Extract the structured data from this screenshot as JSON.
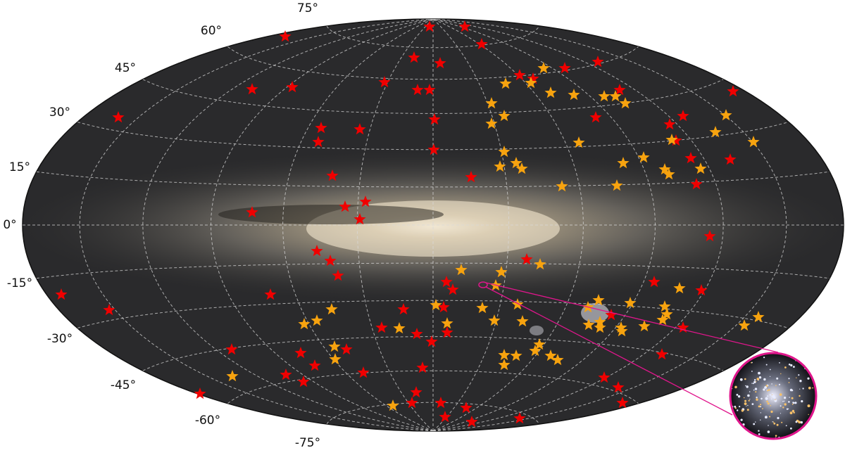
{
  "latitude_labels": [
    "75°",
    "60°",
    "45°",
    "30°",
    "15°",
    "0°",
    "-15°",
    "-30°",
    "-45°",
    "-60°",
    "-75°"
  ]
}
